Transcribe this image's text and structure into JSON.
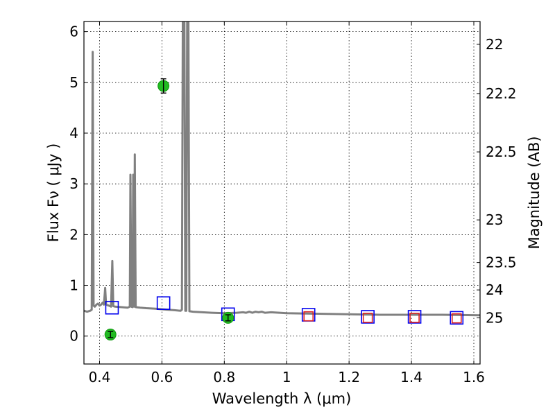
{
  "chart_data": {
    "type": "scatter",
    "title": "",
    "xlabel": "Wavelength  λ (μm)",
    "ylabel": "Flux  Fν  ( μJy )",
    "ylabel_right": "Magnitude (AB)",
    "xlim": [
      0.35,
      1.62
    ],
    "ylim": [
      -0.55,
      6.2
    ],
    "x_ticks": [
      0.4,
      0.6,
      0.8,
      1.0,
      1.2,
      1.4,
      1.6
    ],
    "x_tick_labels": [
      "0.4",
      "0.6",
      "0.8",
      "1",
      "1.2",
      "1.4",
      "1.6"
    ],
    "y_ticks": [
      0,
      1,
      2,
      3,
      4,
      5,
      6
    ],
    "y_tick_labels": [
      "0",
      "1",
      "2",
      "3",
      "4",
      "5",
      "6"
    ],
    "right_ticks": [
      {
        "label": "22",
        "flux": 5.75
      },
      {
        "label": "22.2",
        "flux": 4.78
      },
      {
        "label": "22.5",
        "flux": 3.63
      },
      {
        "label": "23",
        "flux": 2.29
      },
      {
        "label": "23.5",
        "flux": 1.45
      },
      {
        "label": "24",
        "flux": 0.91
      },
      {
        "label": "25",
        "flux": 0.36
      }
    ],
    "grid": true,
    "series": [
      {
        "name": "model spectrum",
        "kind": "line",
        "color": "#808080",
        "points": [
          [
            0.35,
            0.5
          ],
          [
            0.36,
            0.48
          ],
          [
            0.37,
            0.5
          ],
          [
            0.375,
            0.52
          ],
          [
            0.378,
            5.6
          ],
          [
            0.381,
            0.6
          ],
          [
            0.385,
            0.58
          ],
          [
            0.39,
            0.62
          ],
          [
            0.395,
            0.64
          ],
          [
            0.4,
            0.6
          ],
          [
            0.405,
            0.62
          ],
          [
            0.41,
            0.66
          ],
          [
            0.414,
            0.62
          ],
          [
            0.418,
            0.95
          ],
          [
            0.421,
            0.62
          ],
          [
            0.43,
            0.6
          ],
          [
            0.437,
            0.58
          ],
          [
            0.441,
            1.48
          ],
          [
            0.444,
            0.59
          ],
          [
            0.45,
            0.58
          ],
          [
            0.47,
            0.57
          ],
          [
            0.49,
            0.56
          ],
          [
            0.497,
            0.58
          ],
          [
            0.499,
            3.18
          ],
          [
            0.502,
            0.58
          ],
          [
            0.506,
            0.57
          ],
          [
            0.508,
            3.18
          ],
          [
            0.511,
            0.58
          ],
          [
            0.513,
            3.58
          ],
          [
            0.516,
            0.57
          ],
          [
            0.53,
            0.56
          ],
          [
            0.55,
            0.55
          ],
          [
            0.58,
            0.54
          ],
          [
            0.6,
            0.53
          ],
          [
            0.62,
            0.52
          ],
          [
            0.64,
            0.51
          ],
          [
            0.66,
            0.5
          ],
          [
            0.664,
            0.52
          ],
          [
            0.667,
            6.2
          ],
          [
            0.672,
            6.2
          ],
          [
            0.675,
            0.5
          ],
          [
            0.678,
            0.5
          ],
          [
            0.681,
            6.2
          ],
          [
            0.685,
            6.2
          ],
          [
            0.688,
            0.49
          ],
          [
            0.7,
            0.48
          ],
          [
            0.73,
            0.47
          ],
          [
            0.76,
            0.46
          ],
          [
            0.8,
            0.45
          ],
          [
            0.84,
            0.46
          ],
          [
            0.86,
            0.47
          ],
          [
            0.87,
            0.46
          ],
          [
            0.88,
            0.48
          ],
          [
            0.89,
            0.46
          ],
          [
            0.9,
            0.48
          ],
          [
            0.91,
            0.47
          ],
          [
            0.92,
            0.48
          ],
          [
            0.93,
            0.46
          ],
          [
            0.95,
            0.47
          ],
          [
            1.0,
            0.45
          ],
          [
            1.1,
            0.44
          ],
          [
            1.2,
            0.43
          ],
          [
            1.3,
            0.42
          ],
          [
            1.4,
            0.42
          ],
          [
            1.5,
            0.42
          ],
          [
            1.62,
            0.41
          ]
        ]
      },
      {
        "name": "observed photometry",
        "kind": "errorbar",
        "color": "#22bb22",
        "points": [
          {
            "x": 0.435,
            "y": 0.03,
            "yerr": 0.06
          },
          {
            "x": 0.605,
            "y": 4.93,
            "yerr": 0.14
          },
          {
            "x": 0.812,
            "y": 0.36,
            "yerr": 0.06
          }
        ]
      },
      {
        "name": "model photometry (blue squares)",
        "kind": "marker",
        "color": "#0000ee",
        "points": [
          {
            "x": 0.44,
            "y": 0.56
          },
          {
            "x": 0.605,
            "y": 0.65
          },
          {
            "x": 0.812,
            "y": 0.43
          },
          {
            "x": 1.07,
            "y": 0.42
          },
          {
            "x": 1.26,
            "y": 0.38
          },
          {
            "x": 1.41,
            "y": 0.38
          },
          {
            "x": 1.545,
            "y": 0.36
          }
        ]
      },
      {
        "name": "model photometry (red squares)",
        "kind": "marker",
        "color": "#dd2222",
        "points": [
          {
            "x": 1.07,
            "y": 0.39
          },
          {
            "x": 1.26,
            "y": 0.36
          },
          {
            "x": 1.41,
            "y": 0.36
          },
          {
            "x": 1.545,
            "y": 0.35
          }
        ]
      }
    ]
  }
}
